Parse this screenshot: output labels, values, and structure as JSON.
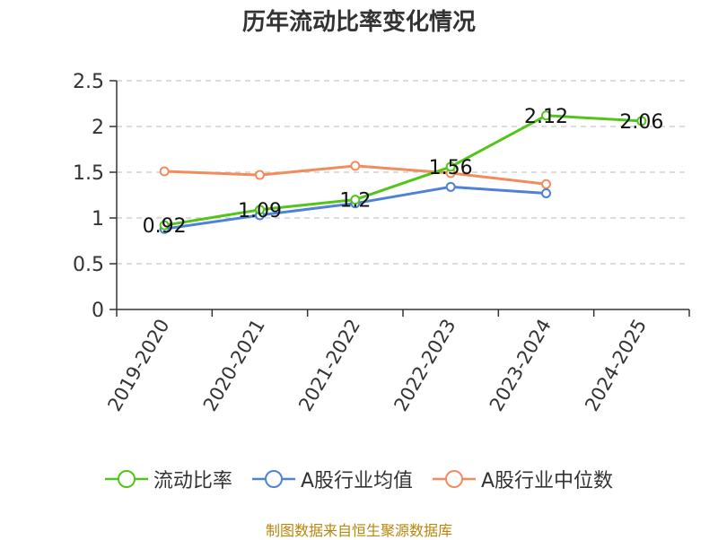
{
  "chart_data": {
    "type": "line",
    "title": "历年流动比率变化情况",
    "categories": [
      "2019-2020",
      "2020-2021",
      "2021-2022",
      "2022-2023",
      "2023-2024",
      "2024-2025"
    ],
    "y_ticks": [
      "0",
      "0.5",
      "1",
      "1.5",
      "2",
      "2.5"
    ],
    "ylim": [
      0,
      2.5
    ],
    "grid": true,
    "legend_position": "bottom",
    "series": [
      {
        "name": "流动比率",
        "color": "#52c41a",
        "values": [
          0.92,
          1.09,
          1.2,
          1.56,
          2.12,
          2.06
        ],
        "labels": [
          "0.92",
          "1.09",
          "1.2",
          "1.56",
          "2.12",
          "2.06"
        ]
      },
      {
        "name": "A股行业均值",
        "color": "#4f81d6",
        "values": [
          0.88,
          1.03,
          1.16,
          1.34,
          1.27,
          null
        ]
      },
      {
        "name": "A股行业中位数",
        "color": "#f28c5c",
        "values": [
          1.51,
          1.47,
          1.57,
          1.49,
          1.37,
          null
        ]
      }
    ]
  },
  "source_note": "制图数据来自恒生聚源数据库"
}
